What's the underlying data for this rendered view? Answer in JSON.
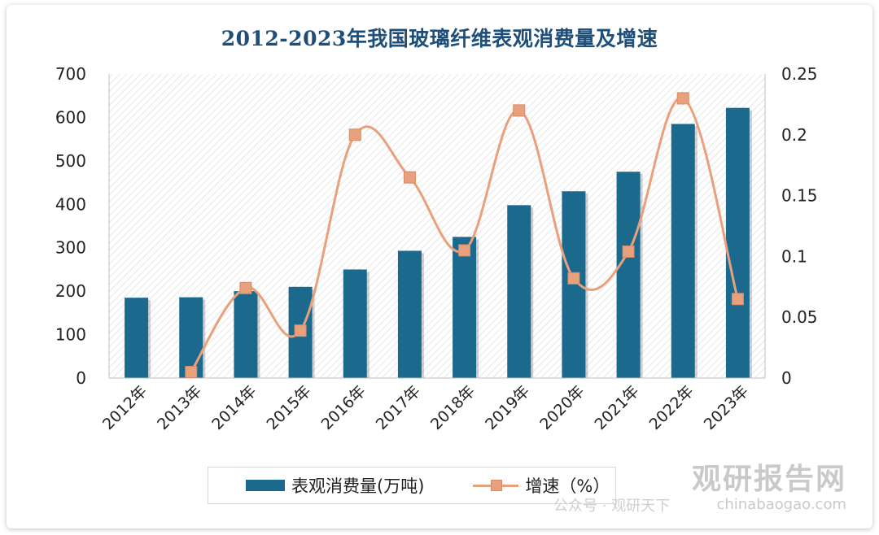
{
  "chart_data": {
    "type": "bar",
    "title": "2012-2023年我国玻璃纤维表观消费量及增速",
    "categories": [
      "2012年",
      "2013年",
      "2014年",
      "2015年",
      "2016年",
      "2017年",
      "2018年",
      "2019年",
      "2020年",
      "2021年",
      "2022年",
      "2023年"
    ],
    "series": [
      {
        "name": "表观消费量(万吨)",
        "type": "bar",
        "axis": "left",
        "values": [
          185,
          186,
          200,
          210,
          250,
          293,
          325,
          398,
          430,
          475,
          585,
          622
        ]
      },
      {
        "name": "增速（%）",
        "type": "line",
        "axis": "right",
        "values": [
          null,
          0.005,
          0.074,
          0.039,
          0.2,
          0.165,
          0.105,
          0.22,
          0.082,
          0.104,
          0.23,
          0.065
        ]
      }
    ],
    "ylim_left": [
      0,
      700
    ],
    "yticks_left": [
      "0",
      "100",
      "200",
      "300",
      "400",
      "500",
      "600",
      "700"
    ],
    "ylim_right": [
      0,
      0.25
    ],
    "yticks_right": [
      "0",
      "0.05",
      "0.1",
      "0.15",
      "0.2",
      "0.25"
    ],
    "legend_position": "bottom",
    "grid": false,
    "colors": {
      "bar": "#1b6a8e",
      "line": "#e9a07c",
      "title": "#1f4f78"
    }
  },
  "watermark": {
    "brand": "观研报告网",
    "url": "chinabaogao.com",
    "sub": "公众号 · 观研天下"
  }
}
